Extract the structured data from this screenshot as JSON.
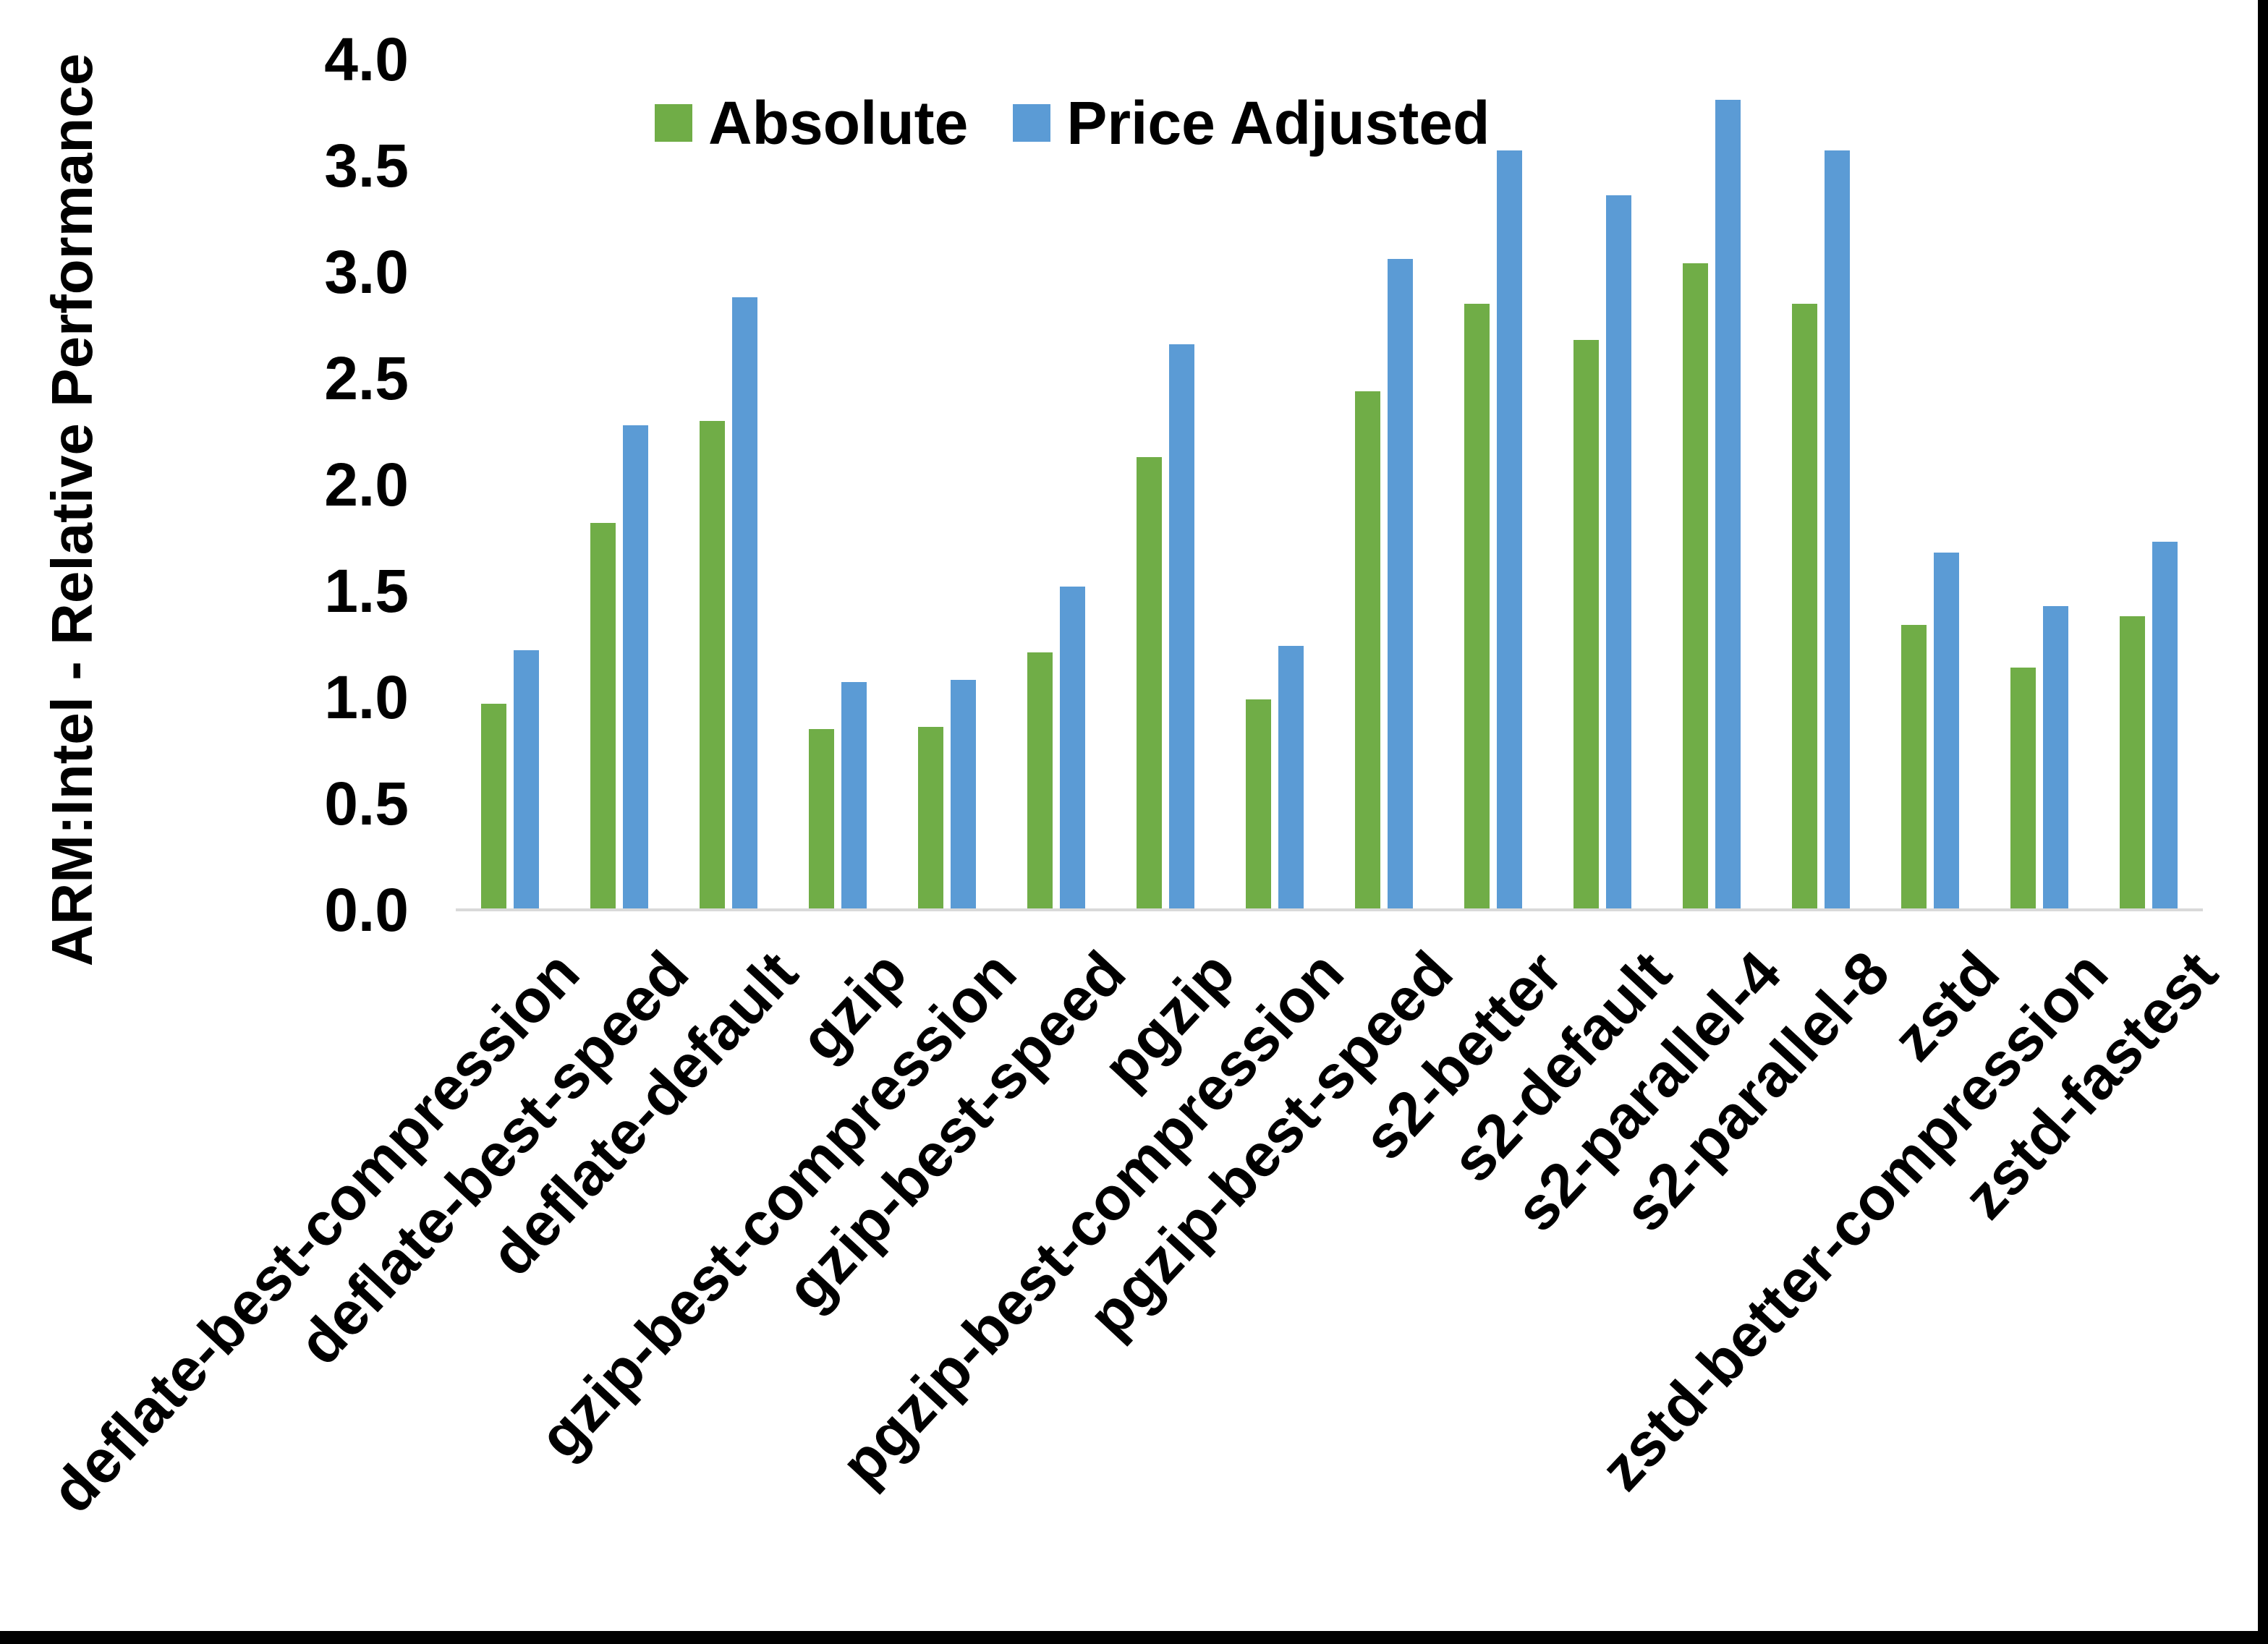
{
  "chart_data": {
    "type": "bar",
    "title": "",
    "xlabel": "",
    "ylabel": "ARM:Intel - Relative Performance",
    "ylim": [
      0.0,
      4.0
    ],
    "ytick_step": 0.5,
    "ytick_labels": [
      "0.0",
      "0.5",
      "1.0",
      "1.5",
      "2.0",
      "2.5",
      "3.0",
      "3.5",
      "4.0"
    ],
    "grid": false,
    "legend_position": "top-center",
    "categories": [
      "deflate-best-compression",
      "deflate-best-speed",
      "deflate-default",
      "gzip",
      "gzip-best-compression",
      "gzip-best-speed",
      "pgzip",
      "pgzip-best-compression",
      "pgzip-best-speed",
      "s2-better",
      "s2-default",
      "s2-parallel-4",
      "s2-parallel-8",
      "zstd",
      "zstd-better-compression",
      "zstd-fastest"
    ],
    "series": [
      {
        "name": "Absolute",
        "color": "#70AD47",
        "values": [
          0.97,
          1.82,
          2.3,
          0.85,
          0.86,
          1.21,
          2.13,
          0.99,
          2.44,
          2.85,
          2.68,
          3.04,
          2.85,
          1.34,
          1.14,
          1.38
        ]
      },
      {
        "name": "Price Adjusted",
        "color": "#5B9BD5",
        "values": [
          1.22,
          2.28,
          2.88,
          1.07,
          1.08,
          1.52,
          2.66,
          1.24,
          3.06,
          3.57,
          3.36,
          3.81,
          3.57,
          1.68,
          1.43,
          1.73
        ]
      }
    ]
  },
  "colors": {
    "axis_line": "#D9D9D9",
    "text": "#000000",
    "border": "#000000"
  }
}
